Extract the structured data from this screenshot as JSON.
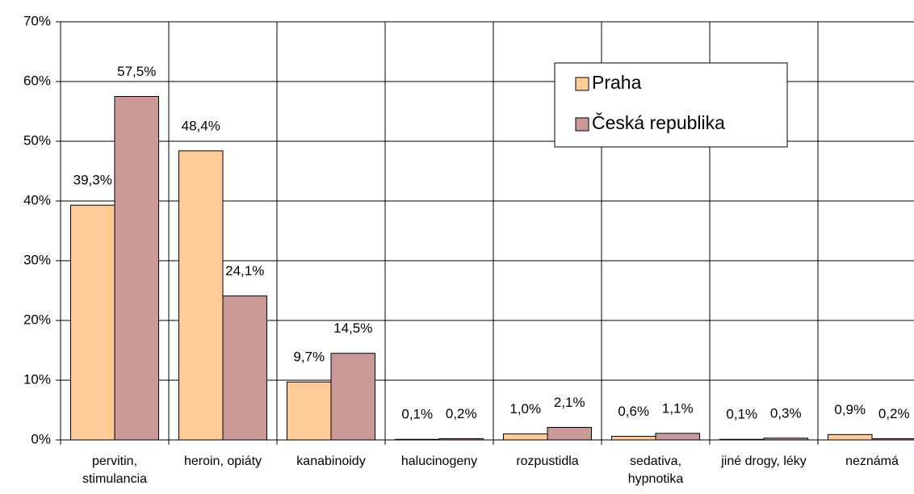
{
  "chart_data": {
    "type": "bar",
    "categories": [
      "pervitin, stimulancia",
      "heroin, opiáty",
      "kanabinoidy",
      "halucinogeny",
      "rozpustidla",
      "sedativa, hypnotika",
      "jiné drogy, léky",
      "neznámá"
    ],
    "series": [
      {
        "name": "Praha",
        "color": "#ffcc99",
        "values": [
          39.3,
          48.4,
          9.7,
          0.1,
          1.0,
          0.6,
          0.1,
          0.9
        ],
        "value_labels": [
          "39,3%",
          "48,4%",
          "9,7%",
          "0,1%",
          "1,0%",
          "0,6%",
          "0,1%",
          "0,9%"
        ]
      },
      {
        "name": "Česká republika",
        "color": "#cc9999",
        "values": [
          57.5,
          24.1,
          14.5,
          0.2,
          2.1,
          1.1,
          0.3,
          0.2
        ],
        "value_labels": [
          "57,5%",
          "24,1%",
          "14,5%",
          "0,2%",
          "2,1%",
          "1,1%",
          "0,3%",
          "0,2%"
        ]
      }
    ],
    "ylim": [
      0,
      70
    ],
    "yticks": [
      {
        "value": 0,
        "label": "0%"
      },
      {
        "value": 10,
        "label": "10%"
      },
      {
        "value": 20,
        "label": "20%"
      },
      {
        "value": 30,
        "label": "30%"
      },
      {
        "value": 40,
        "label": "40%"
      },
      {
        "value": 50,
        "label": "50%"
      },
      {
        "value": 60,
        "label": "60%"
      },
      {
        "value": 70,
        "label": "70%"
      }
    ],
    "grid": true,
    "legend": "upper right"
  }
}
